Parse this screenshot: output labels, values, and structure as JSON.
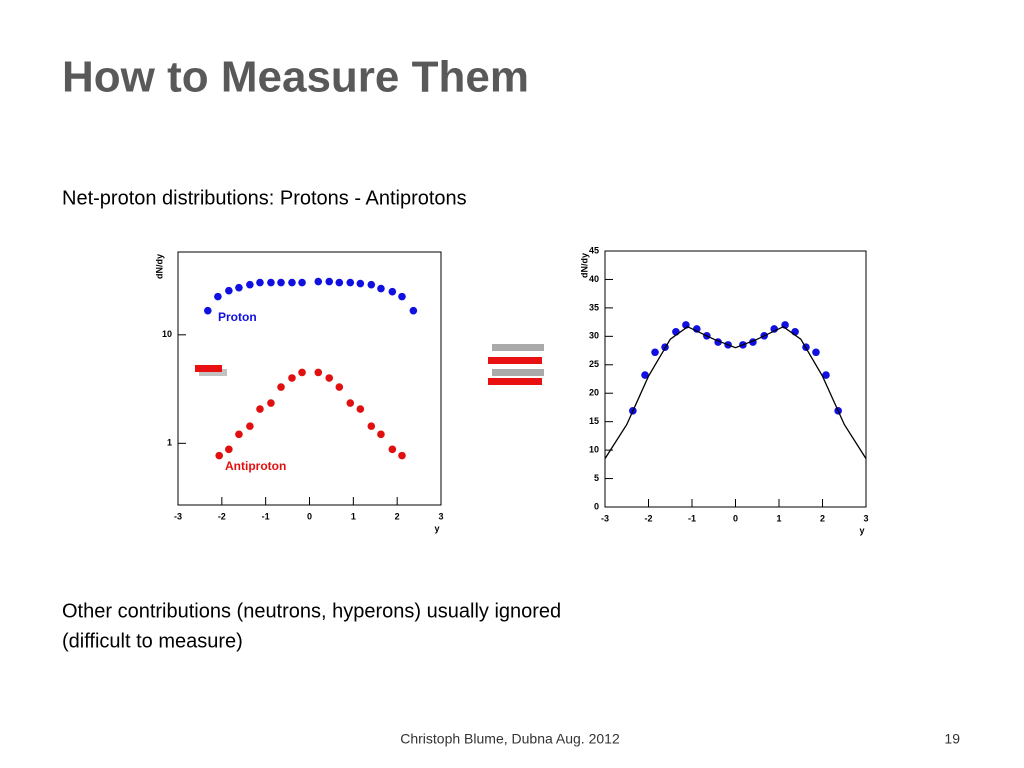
{
  "slide": {
    "title": "How to Measure Them",
    "subtitle": "Net-proton distributions: Protons - Antiprotons",
    "body": [
      "Other contributions (neutrons, hyperons) usually ignored",
      "(difficult to measure)"
    ],
    "footer": "Christoph Blume, Dubna Aug. 2012",
    "page": "19"
  },
  "chart_data": [
    {
      "type": "scatter",
      "y_label": "dN/dy",
      "x_label": "y",
      "log_y": true,
      "xlim": [
        -3,
        3
      ],
      "xticks": [
        -3,
        -2,
        -1,
        0,
        1,
        2,
        3
      ],
      "ylim": [
        0.27,
        58
      ],
      "yticks": [
        1,
        10
      ],
      "series": [
        {
          "name": "Proton",
          "color": "#1010e0",
          "x": [
            -2.32,
            -2.09,
            -1.84,
            -1.61,
            -1.36,
            -1.13,
            -0.88,
            -0.65,
            -0.4,
            -0.17,
            0.2,
            0.45,
            0.68,
            0.93,
            1.16,
            1.41,
            1.63,
            1.89,
            2.11,
            2.37
          ],
          "values": [
            16.7,
            22.5,
            25.5,
            27.2,
            29,
            30.3,
            30.3,
            30.3,
            30.3,
            30.3,
            31,
            31,
            30.3,
            30.3,
            29.7,
            29,
            26.7,
            25,
            22.5,
            16.7
          ]
        },
        {
          "name": "Antiproton",
          "color": "#e01010",
          "x": [
            -2.06,
            -1.84,
            -1.61,
            -1.36,
            -1.13,
            -0.88,
            -0.65,
            -0.4,
            -0.17,
            0.2,
            0.45,
            0.68,
            0.93,
            1.16,
            1.41,
            1.63,
            1.89,
            2.11
          ],
          "values": [
            0.77,
            0.88,
            1.21,
            1.44,
            2.07,
            2.35,
            3.3,
            4.0,
            4.5,
            4.5,
            4.0,
            3.3,
            2.35,
            2.07,
            1.44,
            1.21,
            0.88,
            0.77
          ]
        }
      ]
    },
    {
      "type": "scatter",
      "y_label": "dN/dy",
      "x_label": "y",
      "log_y": false,
      "xlim": [
        -3,
        3
      ],
      "xticks": [
        -3,
        -2,
        -1,
        0,
        1,
        2,
        3
      ],
      "ylim": [
        0,
        45
      ],
      "yticks": [
        0,
        5,
        10,
        15,
        20,
        25,
        30,
        35,
        40,
        45
      ],
      "series": [
        {
          "color": "#1010e0",
          "x": [
            -2.36,
            -2.08,
            -1.85,
            -1.62,
            -1.37,
            -1.14,
            -0.89,
            -0.66,
            -0.4,
            -0.17,
            0.17,
            0.4,
            0.66,
            0.89,
            1.14,
            1.37,
            1.62,
            1.85,
            2.08,
            2.36
          ],
          "values": [
            16.9,
            23.2,
            27.2,
            28.1,
            30.8,
            32.0,
            31.3,
            30.1,
            29.0,
            28.5,
            28.5,
            29.0,
            30.1,
            31.3,
            32.0,
            30.8,
            28.1,
            27.2,
            23.2,
            16.9
          ]
        },
        {
          "color": "#000000",
          "line": true,
          "x": [
            -3,
            -2.5,
            -2,
            -1.5,
            -1.1,
            -0.5,
            0,
            0.5,
            1.1,
            1.5,
            2,
            2.5,
            3
          ],
          "values": [
            8.5,
            14.5,
            23,
            29.5,
            31.7,
            29.5,
            28,
            29.5,
            31.7,
            29.5,
            23,
            14.5,
            8.5
          ]
        }
      ]
    }
  ]
}
